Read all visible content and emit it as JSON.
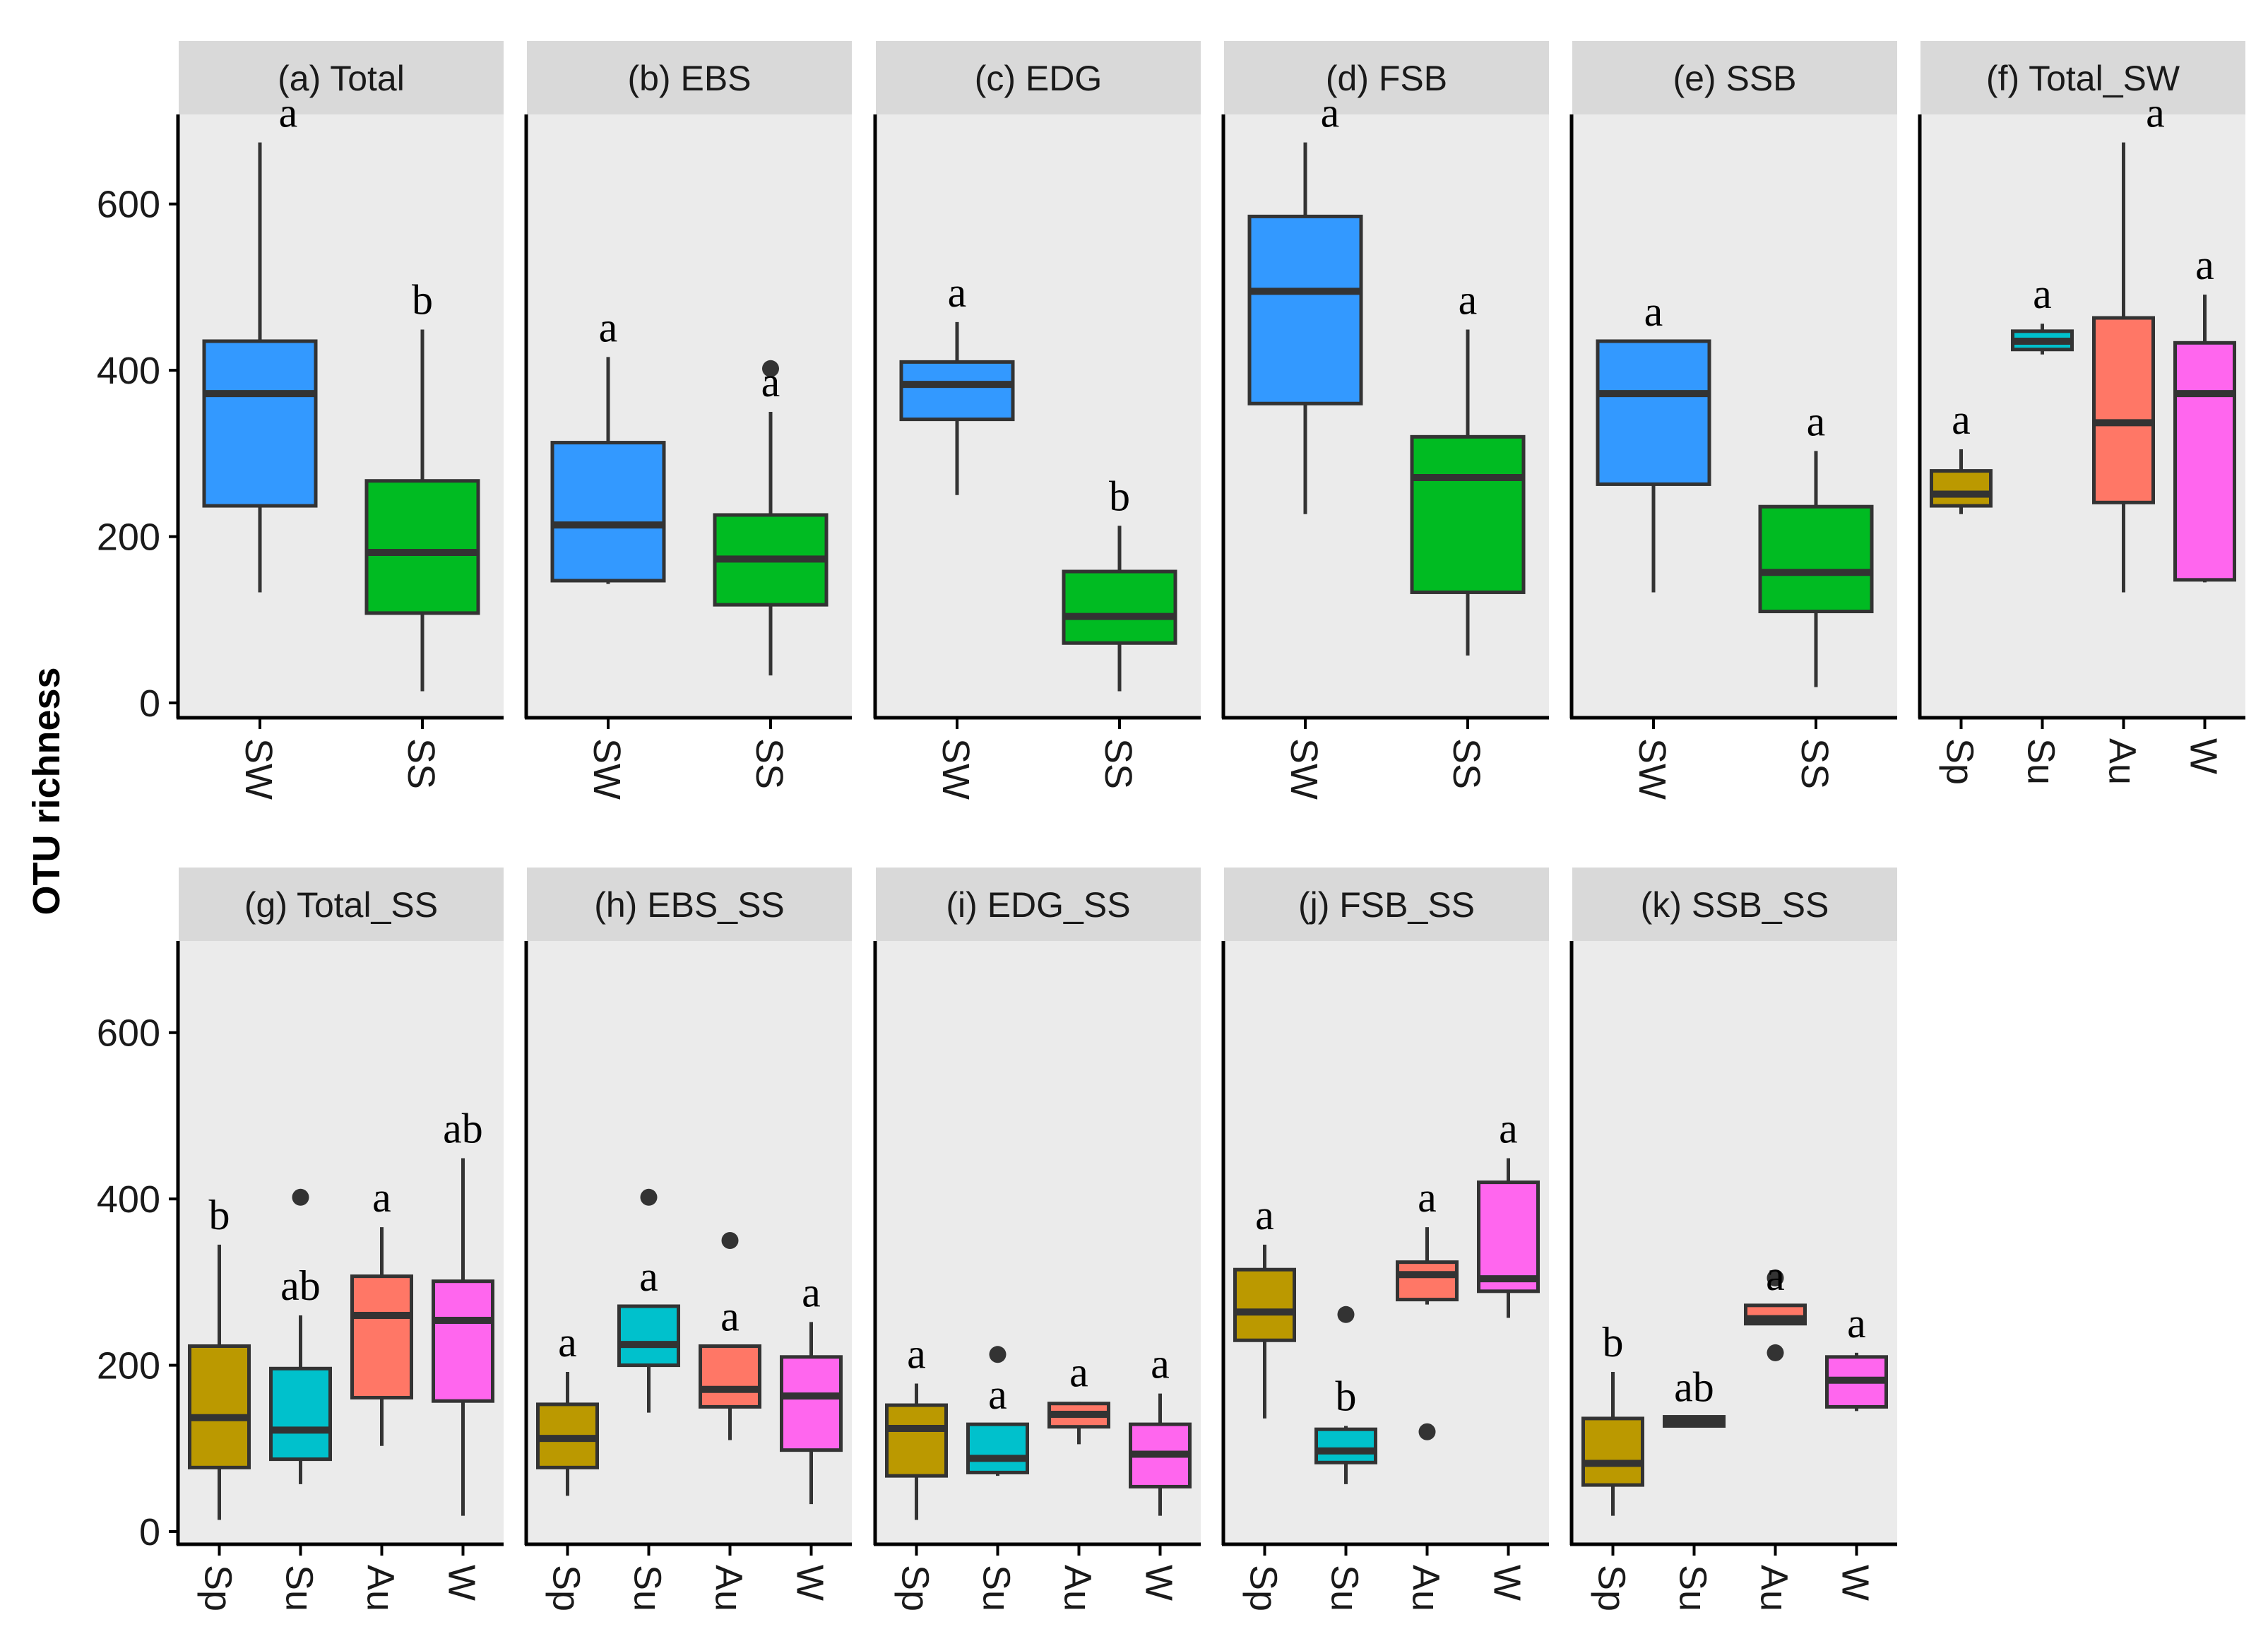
{
  "chart_data": {
    "type": "boxplot",
    "ylabel": "OTU richness",
    "ylim": [
      -25,
      710
    ],
    "yticks": [
      0,
      200,
      400,
      600
    ],
    "colors": {
      "SW": "#3399FF",
      "SS": "#00BB22",
      "Sp": "#BB9900",
      "Su": "#00C1CC",
      "Au": "#FF7766",
      "W": "#FF66EE",
      "panel_bg": "#EBEBEB",
      "strip_bg": "#D9D9D9",
      "outline": "#333333"
    },
    "panels": [
      {
        "title": "(a) Total",
        "boxes": [
          {
            "cat": "SW",
            "min": 133,
            "q1": 237,
            "median": 372,
            "q3": 435,
            "max": 674,
            "outliers": [],
            "label": "a"
          },
          {
            "cat": "SS",
            "min": 14,
            "q1": 108,
            "median": 181,
            "q3": 267,
            "max": 449,
            "outliers": [],
            "label": "b"
          }
        ]
      },
      {
        "title": "(b) EBS",
        "boxes": [
          {
            "cat": "SW",
            "min": 143,
            "q1": 147,
            "median": 214,
            "q3": 313,
            "max": 416,
            "outliers": [],
            "label": "a"
          },
          {
            "cat": "SS",
            "min": 33,
            "q1": 118,
            "median": 173,
            "q3": 226,
            "max": 350,
            "outliers": [
              402
            ],
            "label": "a"
          }
        ]
      },
      {
        "title": "(c) EDG",
        "boxes": [
          {
            "cat": "SW",
            "min": 250,
            "q1": 341,
            "median": 383,
            "q3": 410,
            "max": 458,
            "outliers": [],
            "label": "a"
          },
          {
            "cat": "SS",
            "min": 14,
            "q1": 72,
            "median": 104,
            "q3": 158,
            "max": 213,
            "outliers": [],
            "label": "b"
          }
        ]
      },
      {
        "title": "(d) FSB",
        "boxes": [
          {
            "cat": "SW",
            "min": 227,
            "q1": 360,
            "median": 495,
            "q3": 585,
            "max": 674,
            "outliers": [],
            "label": "a"
          },
          {
            "cat": "SS",
            "min": 57,
            "q1": 133,
            "median": 271,
            "q3": 320,
            "max": 449,
            "outliers": [],
            "label": "a"
          }
        ]
      },
      {
        "title": "(e) SSB",
        "boxes": [
          {
            "cat": "SW",
            "min": 133,
            "q1": 263,
            "median": 372,
            "q3": 435,
            "max": 435,
            "outliers": [],
            "label": "a"
          },
          {
            "cat": "SS",
            "min": 19,
            "q1": 110,
            "median": 157,
            "q3": 236,
            "max": 303,
            "outliers": [],
            "label": "a"
          }
        ]
      },
      {
        "title": "(f) Total_SW",
        "boxes": [
          {
            "cat": "Sp",
            "min": 227,
            "q1": 237,
            "median": 251,
            "q3": 279,
            "max": 305,
            "outliers": [],
            "label": "a"
          },
          {
            "cat": "Su",
            "min": 419,
            "q1": 425,
            "median": 435,
            "q3": 447,
            "max": 456,
            "outliers": [],
            "label": "a"
          },
          {
            "cat": "Au",
            "min": 133,
            "q1": 241,
            "median": 337,
            "q3": 463,
            "max": 674,
            "outliers": [],
            "label": "a"
          },
          {
            "cat": "W",
            "min": 145,
            "q1": 148,
            "median": 372,
            "q3": 433,
            "max": 491,
            "outliers": [],
            "label": "a"
          }
        ]
      },
      {
        "title": "(g) Total_SS",
        "boxes": [
          {
            "cat": "Sp",
            "min": 14,
            "q1": 77,
            "median": 137,
            "q3": 223,
            "max": 345,
            "outliers": [],
            "label": "b"
          },
          {
            "cat": "Su",
            "min": 57,
            "q1": 87,
            "median": 122,
            "q3": 196,
            "max": 260,
            "outliers": [
              402
            ],
            "label": "ab"
          },
          {
            "cat": "Au",
            "min": 103,
            "q1": 161,
            "median": 260,
            "q3": 307,
            "max": 366,
            "outliers": [],
            "label": "a"
          },
          {
            "cat": "W",
            "min": 19,
            "q1": 157,
            "median": 254,
            "q3": 301,
            "max": 449,
            "outliers": [],
            "label": "ab"
          }
        ]
      },
      {
        "title": "(h) EBS_SS",
        "boxes": [
          {
            "cat": "Sp",
            "min": 43,
            "q1": 77,
            "median": 112,
            "q3": 153,
            "max": 192,
            "outliers": [],
            "label": "a"
          },
          {
            "cat": "Su",
            "min": 143,
            "q1": 200,
            "median": 225,
            "q3": 271,
            "max": 271,
            "outliers": [
              402
            ],
            "label": "a"
          },
          {
            "cat": "Au",
            "min": 110,
            "q1": 150,
            "median": 171,
            "q3": 223,
            "max": 223,
            "outliers": [
              350
            ],
            "label": "a"
          },
          {
            "cat": "W",
            "min": 33,
            "q1": 98,
            "median": 163,
            "q3": 210,
            "max": 252,
            "outliers": [],
            "label": "a"
          }
        ]
      },
      {
        "title": "(i) EDG_SS",
        "boxes": [
          {
            "cat": "Sp",
            "min": 14,
            "q1": 67,
            "median": 124,
            "q3": 152,
            "max": 178,
            "outliers": [],
            "label": "a"
          },
          {
            "cat": "Su",
            "min": 67,
            "q1": 71,
            "median": 88,
            "q3": 129,
            "max": 129,
            "outliers": [
              213
            ],
            "label": "a"
          },
          {
            "cat": "Au",
            "min": 105,
            "q1": 126,
            "median": 141,
            "q3": 154,
            "max": 156,
            "outliers": [],
            "label": "a"
          },
          {
            "cat": "W",
            "min": 19,
            "q1": 54,
            "median": 93,
            "q3": 129,
            "max": 166,
            "outliers": [],
            "label": "a"
          }
        ]
      },
      {
        "title": "(j) FSB_SS",
        "boxes": [
          {
            "cat": "Sp",
            "min": 136,
            "q1": 230,
            "median": 264,
            "q3": 315,
            "max": 345,
            "outliers": [],
            "label": "a"
          },
          {
            "cat": "Su",
            "min": 57,
            "q1": 83,
            "median": 97,
            "q3": 123,
            "max": 127,
            "outliers": [
              261
            ],
            "label": "b"
          },
          {
            "cat": "Au",
            "min": 273,
            "q1": 279,
            "median": 309,
            "q3": 324,
            "max": 366,
            "outliers": [
              120
            ],
            "label": "a"
          },
          {
            "cat": "W",
            "min": 257,
            "q1": 289,
            "median": 304,
            "q3": 420,
            "max": 449,
            "outliers": [],
            "label": "a"
          }
        ]
      },
      {
        "title": "(k) SSB_SS",
        "boxes": [
          {
            "cat": "Sp",
            "min": 19,
            "q1": 56,
            "median": 82,
            "q3": 136,
            "max": 192,
            "outliers": [],
            "label": "b"
          },
          {
            "cat": "Su",
            "min": 126,
            "q1": 127,
            "median": 133,
            "q3": 138,
            "max": 138,
            "outliers": [],
            "label": "ab"
          },
          {
            "cat": "Au",
            "min": 250,
            "q1": 250,
            "median": 256,
            "q3": 272,
            "max": 272,
            "outliers": [
              305,
              215
            ],
            "label": "a"
          },
          {
            "cat": "W",
            "min": 145,
            "q1": 150,
            "median": 182,
            "q3": 210,
            "max": 215,
            "outliers": [],
            "label": "a"
          }
        ]
      }
    ]
  }
}
